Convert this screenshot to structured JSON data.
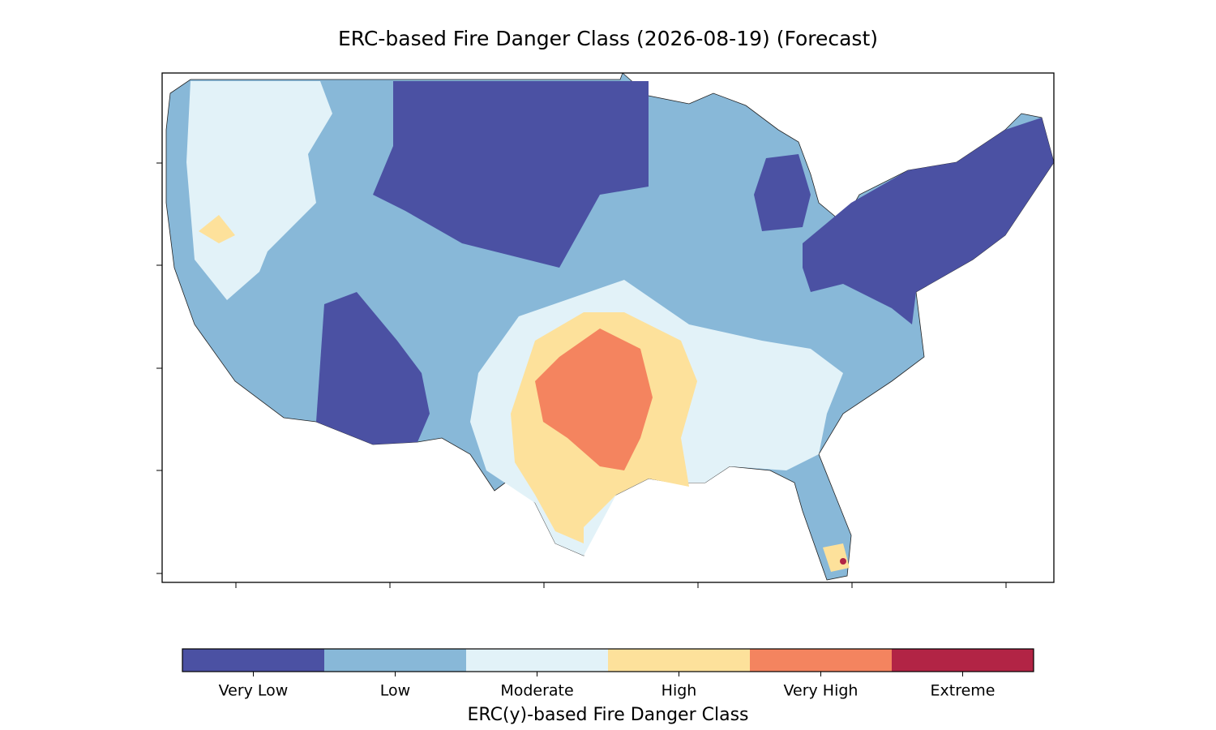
{
  "map": {
    "title": "ERC-based Fire Danger Class (2026-08-19) (Forecast)",
    "colorbar": {
      "label": "ERC(y)-based Fire Danger Class",
      "classes": [
        {
          "name": "Very Low",
          "color": "#4b51a3"
        },
        {
          "name": "Low",
          "color": "#88b8d8"
        },
        {
          "name": "Moderate",
          "color": "#e2f2f8"
        },
        {
          "name": "High",
          "color": "#fde19b"
        },
        {
          "name": "Very High",
          "color": "#f4845f"
        },
        {
          "name": "Extreme",
          "color": "#b22445"
        }
      ]
    }
  }
}
